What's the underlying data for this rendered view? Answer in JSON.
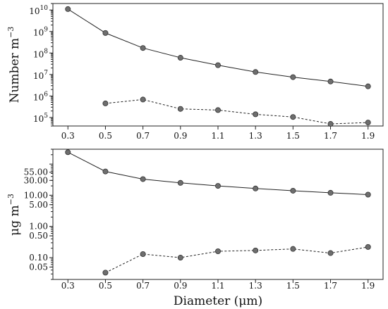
{
  "chart_data": [
    {
      "type": "line",
      "ylabel": "Number  m",
      "ylabel_sup": "−3",
      "yscale": "log",
      "ylim": [
        40000,
        20000000000
      ],
      "x": [
        0.3,
        0.5,
        0.7,
        0.9,
        1.1,
        1.3,
        1.5,
        1.7,
        1.9
      ],
      "x_tick_labels": [
        "0.3",
        "0.5",
        "0.7",
        "0.9",
        "1.1",
        "1.3",
        "1.5",
        "1.7",
        "1.9"
      ],
      "y_ticks": [
        {
          "value": 100000,
          "base": "10",
          "exp": "5"
        },
        {
          "value": 1000000,
          "base": "10",
          "exp": "6"
        },
        {
          "value": 10000000,
          "base": "10",
          "exp": "7"
        },
        {
          "value": 100000000,
          "base": "10",
          "exp": "8"
        },
        {
          "value": 1000000000,
          "base": "10",
          "exp": "9"
        },
        {
          "value": 10000000000,
          "base": "10",
          "exp": "10"
        }
      ],
      "series": [
        {
          "style": "solid",
          "x": [
            0.3,
            0.5,
            0.7,
            0.9,
            1.1,
            1.3,
            1.5,
            1.7,
            1.9
          ],
          "values": [
            11000000000,
            850000000,
            170000000,
            60000000,
            27000000,
            13000000,
            7500000,
            4700000,
            2800000
          ]
        },
        {
          "style": "dashed",
          "x": [
            0.5,
            0.7,
            0.9,
            1.1,
            1.3,
            1.5,
            1.7,
            1.9
          ],
          "values": [
            450000,
            680000,
            250000,
            220000,
            140000,
            105000,
            50000,
            58000
          ]
        }
      ]
    },
    {
      "type": "line",
      "ylabel": "μg  m",
      "ylabel_sup": "−3",
      "xlabel": "Diameter (μm)",
      "yscale": "log",
      "ylim": [
        0.02,
        300
      ],
      "x": [
        0.3,
        0.5,
        0.7,
        0.9,
        1.1,
        1.3,
        1.5,
        1.7,
        1.9
      ],
      "x_tick_labels": [
        "0.3",
        "0.5",
        "0.7",
        "0.9",
        "1.1",
        "1.3",
        "1.5",
        "1.7",
        "1.9"
      ],
      "y_ticks": [
        {
          "value": 0.05,
          "label": "0.05"
        },
        {
          "value": 0.1,
          "label": "0.10"
        },
        {
          "value": 0.5,
          "label": "0.50"
        },
        {
          "value": 1.0,
          "label": "1.00"
        },
        {
          "value": 5.0,
          "label": "5.00"
        },
        {
          "value": 10.0,
          "label": "10.00"
        },
        {
          "value": 30.0,
          "label": "30.00"
        },
        {
          "value": 55.0,
          "label": "55.00"
        }
      ],
      "series": [
        {
          "style": "solid",
          "x": [
            0.3,
            0.5,
            0.7,
            0.9,
            1.1,
            1.3,
            1.5,
            1.7,
            1.9
          ],
          "values": [
            240,
            58,
            33,
            25,
            20,
            16.5,
            14,
            12,
            10.5
          ]
        },
        {
          "style": "dashed",
          "x": [
            0.5,
            0.7,
            0.9,
            1.1,
            1.3,
            1.5,
            1.7,
            1.9
          ],
          "values": [
            0.033,
            0.13,
            0.1,
            0.16,
            0.17,
            0.19,
            0.14,
            0.22
          ]
        }
      ]
    }
  ]
}
